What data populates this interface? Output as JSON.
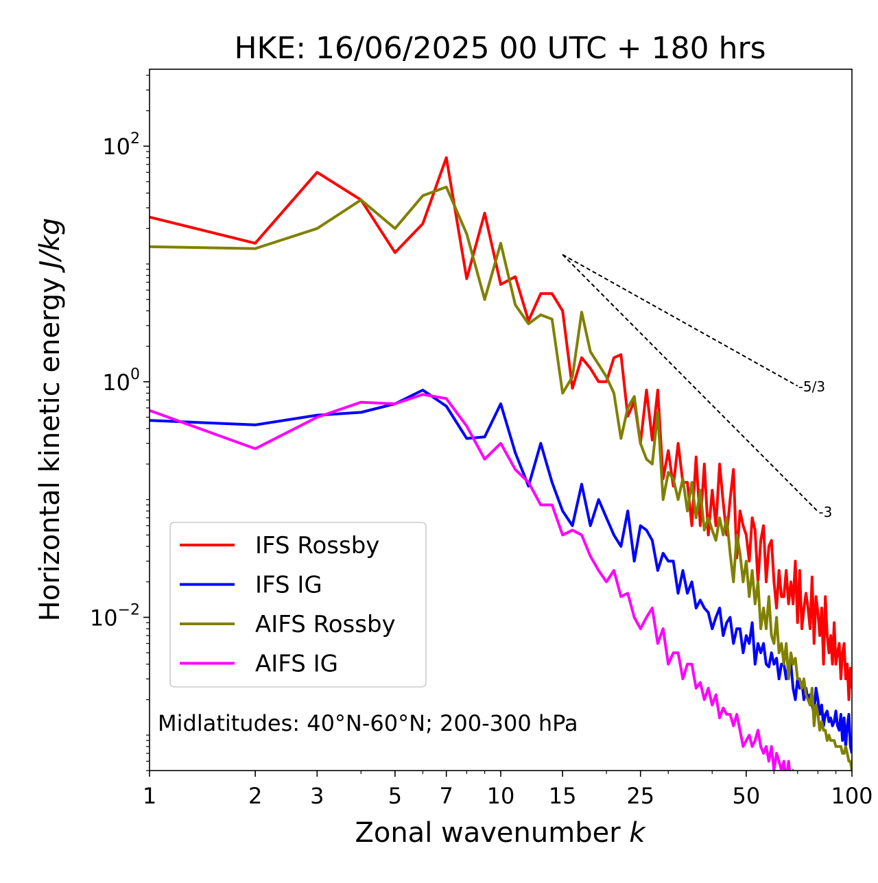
{
  "chart_data": {
    "type": "line",
    "title": "HKE: 16/06/2025 00 UTC + 180 hrs",
    "xlabel": "Zonal wavenumber",
    "xlabel_symbol": "k",
    "ylabel": "Horizontal kinetic energy",
    "ylabel_units": "J/kg",
    "xscale": "log",
    "yscale": "log",
    "xlim": [
      1,
      100
    ],
    "ylim": [
      0.0005,
      450
    ],
    "x_ticks": [
      1,
      2,
      3,
      5,
      7,
      10,
      15,
      25,
      50,
      100
    ],
    "x_tick_labels": [
      "1",
      "2",
      "3",
      "5",
      "7",
      "10",
      "15",
      "25",
      "50",
      "100"
    ],
    "y_ticks": [
      0.01,
      1,
      100
    ],
    "y_tick_labels": [
      {
        "base": "10",
        "exp": "−2"
      },
      {
        "base": "10",
        "exp": "0"
      },
      {
        "base": "10",
        "exp": "2"
      }
    ],
    "legend_location": "lower left",
    "annotation": "Midlatitudes: 40°N-60°N; 200-300 hPa",
    "reference_lines": [
      {
        "label": "-5/3",
        "slope": -1.6667,
        "x_start": 15,
        "x_end": 70,
        "y_start": 12
      },
      {
        "label": "-3",
        "slope": -3,
        "x_start": 15,
        "x_end": 80,
        "y_start": 12
      }
    ],
    "series": [
      {
        "name": "IFS Rossby",
        "color": "#ff0000",
        "x": [
          1,
          2,
          3,
          4,
          5,
          6,
          7,
          8,
          9,
          10,
          11,
          12,
          13,
          14,
          15,
          16,
          17,
          18,
          19,
          20,
          21,
          22,
          23,
          24,
          25,
          26,
          27,
          28,
          29,
          30,
          31,
          32,
          33,
          34,
          35,
          36,
          37,
          38,
          39,
          40,
          41,
          42,
          43,
          44,
          45,
          46,
          47,
          48,
          49,
          50,
          51,
          52,
          53,
          54,
          55,
          56,
          57,
          58,
          59,
          60,
          61,
          62,
          63,
          64,
          65,
          66,
          67,
          68,
          69,
          70,
          71,
          72,
          73,
          74,
          75,
          76,
          77,
          78,
          79,
          80,
          81,
          82,
          83,
          84,
          85,
          86,
          87,
          88,
          89,
          90,
          91,
          92,
          93,
          94,
          95,
          96,
          97,
          98,
          99,
          100
        ],
        "y": [
          25,
          15,
          60,
          35,
          12.5,
          22,
          80,
          7.5,
          27,
          6.7,
          7.8,
          3.3,
          5.6,
          5.6,
          4,
          0.88,
          1.6,
          1.3,
          1.0,
          1.0,
          1.6,
          1.7,
          0.51,
          0.68,
          0.3,
          0.85,
          0.32,
          0.85,
          0.15,
          0.26,
          0.13,
          0.3,
          0.14,
          0.14,
          0.06,
          0.23,
          0.06,
          0.2,
          0.05,
          0.12,
          0.06,
          0.2,
          0.095,
          0.05,
          0.1,
          0.18,
          0.032,
          0.08,
          0.06,
          0.05,
          0.03,
          0.07,
          0.055,
          0.02,
          0.045,
          0.06,
          0.02,
          0.04,
          0.045,
          0.02,
          0.012,
          0.025,
          0.015,
          0.015,
          0.025,
          0.013,
          0.02,
          0.013,
          0.03,
          0.009,
          0.025,
          0.008,
          0.012,
          0.016,
          0.012,
          0.008,
          0.022,
          0.006,
          0.015,
          0.011,
          0.007,
          0.012,
          0.004,
          0.015,
          0.007,
          0.005,
          0.007,
          0.004,
          0.009,
          0.004,
          0.005,
          0.006,
          0.003,
          0.005,
          0.006,
          0.003,
          0.004,
          0.002,
          0.0037,
          0.0025
        ]
      },
      {
        "name": "IFS IG",
        "color": "#0000ff",
        "x": [
          1,
          2,
          3,
          4,
          5,
          6,
          7,
          8,
          9,
          10,
          11,
          12,
          13,
          14,
          15,
          16,
          17,
          18,
          19,
          20,
          21,
          22,
          23,
          24,
          25,
          26,
          27,
          28,
          29,
          30,
          31,
          32,
          33,
          34,
          35,
          36,
          37,
          38,
          39,
          40,
          41,
          42,
          43,
          44,
          45,
          46,
          47,
          48,
          49,
          50,
          51,
          52,
          53,
          54,
          55,
          56,
          57,
          58,
          59,
          60,
          61,
          62,
          63,
          64,
          65,
          66,
          67,
          68,
          69,
          70,
          71,
          72,
          73,
          74,
          75,
          76,
          77,
          78,
          79,
          80,
          81,
          82,
          83,
          84,
          85,
          86,
          87,
          88,
          89,
          90,
          91,
          92,
          93,
          94,
          95,
          96,
          97,
          98,
          99,
          100
        ],
        "y": [
          0.47,
          0.43,
          0.52,
          0.55,
          0.65,
          0.85,
          0.62,
          0.33,
          0.34,
          0.65,
          0.25,
          0.13,
          0.3,
          0.14,
          0.08,
          0.06,
          0.135,
          0.06,
          0.1,
          0.07,
          0.05,
          0.04,
          0.08,
          0.03,
          0.06,
          0.055,
          0.045,
          0.025,
          0.035,
          0.03,
          0.03,
          0.016,
          0.025,
          0.016,
          0.02,
          0.012,
          0.014,
          0.012,
          0.011,
          0.008,
          0.01,
          0.012,
          0.007,
          0.009,
          0.01,
          0.006,
          0.008,
          0.008,
          0.005,
          0.007,
          0.006,
          0.009,
          0.004,
          0.006,
          0.005,
          0.006,
          0.004,
          0.0038,
          0.005,
          0.004,
          0.0045,
          0.003,
          0.004,
          0.004,
          0.003,
          0.004,
          0.004,
          0.0025,
          0.002,
          0.003,
          0.0025,
          0.0028,
          0.002,
          0.0025,
          0.002,
          0.0022,
          0.0018,
          0.0015,
          0.0025,
          0.002,
          0.0015,
          0.0018,
          0.0012,
          0.0015,
          0.0016,
          0.0013,
          0.0014,
          0.0012,
          0.0013,
          0.0016,
          0.0012,
          0.0011,
          0.0015,
          0.0009,
          0.0014,
          0.0008,
          0.0012,
          0.0015,
          0.0008,
          0.0007
        ]
      },
      {
        "name": "AIFS Rossby",
        "color": "#808000",
        "x": [
          1,
          2,
          3,
          4,
          5,
          6,
          7,
          8,
          9,
          10,
          11,
          12,
          13,
          14,
          15,
          16,
          17,
          18,
          19,
          20,
          21,
          22,
          23,
          24,
          25,
          26,
          27,
          28,
          29,
          30,
          31,
          32,
          33,
          34,
          35,
          36,
          37,
          38,
          39,
          40,
          41,
          42,
          43,
          44,
          45,
          46,
          47,
          48,
          49,
          50,
          51,
          52,
          53,
          54,
          55,
          56,
          57,
          58,
          59,
          60,
          61,
          62,
          63,
          64,
          65,
          66,
          67,
          68,
          69,
          70,
          71,
          72,
          73,
          74,
          75,
          76,
          77,
          78,
          79,
          80,
          81,
          82,
          83,
          84,
          85,
          86,
          87,
          88,
          89,
          90,
          91,
          92,
          93,
          94,
          95,
          96,
          97,
          98,
          99,
          100
        ],
        "y": [
          14,
          13.5,
          20,
          35,
          20,
          38,
          45,
          18,
          5,
          15,
          4.5,
          3.1,
          3.7,
          3.4,
          0.8,
          1.1,
          3.9,
          1.8,
          1.4,
          1.1,
          0.8,
          0.33,
          0.6,
          0.75,
          0.3,
          0.22,
          0.2,
          0.55,
          0.1,
          0.17,
          0.15,
          0.1,
          0.15,
          0.08,
          0.14,
          0.07,
          0.12,
          0.055,
          0.07,
          0.055,
          0.045,
          0.07,
          0.05,
          0.07,
          0.035,
          0.02,
          0.05,
          0.035,
          0.02,
          0.03,
          0.015,
          0.025,
          0.013,
          0.02,
          0.008,
          0.012,
          0.008,
          0.015,
          0.007,
          0.006,
          0.01,
          0.005,
          0.006,
          0.004,
          0.006,
          0.003,
          0.005,
          0.004,
          0.0045,
          0.003,
          0.003,
          0.0025,
          0.003,
          0.0022,
          0.002,
          0.0018,
          0.0025,
          0.0012,
          0.0018,
          0.0015,
          0.0011,
          0.0013,
          0.0011,
          0.0011,
          0.0009,
          0.001,
          0.0009,
          0.0009,
          0.0009,
          0.0008,
          0.0008,
          0.0008,
          0.0008,
          0.0007,
          0.0007,
          0.0008,
          0.0007,
          0.0006,
          0.0006,
          0.0005
        ]
      },
      {
        "name": "AIFS IG",
        "color": "#ff00ff",
        "x": [
          1,
          2,
          3,
          4,
          5,
          6,
          7,
          8,
          9,
          10,
          11,
          12,
          13,
          14,
          15,
          16,
          17,
          18,
          19,
          20,
          21,
          22,
          23,
          24,
          25,
          26,
          27,
          28,
          29,
          30,
          31,
          32,
          33,
          34,
          35,
          36,
          37,
          38,
          39,
          40,
          41,
          42,
          43,
          44,
          45,
          46,
          47,
          48,
          49,
          50,
          51,
          52,
          53,
          54,
          55,
          56,
          57,
          58,
          59,
          60,
          61,
          62,
          63,
          64,
          65,
          66,
          67,
          68,
          69,
          70
        ],
        "y": [
          0.57,
          0.27,
          0.5,
          0.67,
          0.65,
          0.78,
          0.72,
          0.42,
          0.22,
          0.3,
          0.18,
          0.14,
          0.09,
          0.09,
          0.05,
          0.055,
          0.05,
          0.033,
          0.025,
          0.02,
          0.025,
          0.015,
          0.016,
          0.01,
          0.008,
          0.01,
          0.012,
          0.006,
          0.008,
          0.004,
          0.005,
          0.005,
          0.003,
          0.004,
          0.004,
          0.0025,
          0.0028,
          0.002,
          0.0025,
          0.0018,
          0.0022,
          0.0014,
          0.0017,
          0.0015,
          0.0015,
          0.0012,
          0.0015,
          0.0011,
          0.0008,
          0.0009,
          0.001,
          0.0008,
          0.0009,
          0.0011,
          0.0008,
          0.0007,
          0.0008,
          0.0006,
          0.0008,
          0.0005,
          0.0007,
          0.0006,
          0.0005,
          0.0006,
          0.0004,
          0.0006,
          0.0004,
          0.0005,
          0.0004,
          0.0005
        ]
      }
    ]
  }
}
